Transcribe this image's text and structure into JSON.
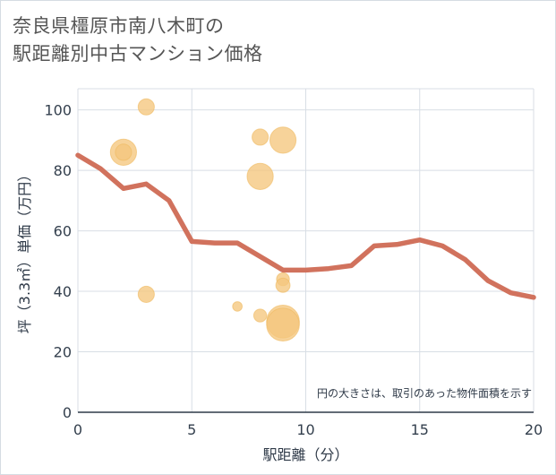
{
  "chart_data": {
    "type": "scatter",
    "title_lines": [
      "奈良県橿原市南八木町の",
      "駅距離別中古マンション価格"
    ],
    "xlabel": "駅距離（分）",
    "ylabel": "坪（3.3㎡）単価（万円）",
    "xlim": [
      0,
      20
    ],
    "ylim": [
      0,
      107
    ],
    "x_ticks": [
      0,
      5,
      10,
      15,
      20
    ],
    "y_ticks": [
      0,
      20,
      40,
      60,
      80,
      100
    ],
    "grid": true,
    "note": "円の大きさは、取引のあった物件面積を示す",
    "scatter_points": [
      {
        "x": 2,
        "y": 86,
        "size": 3
      },
      {
        "x": 2,
        "y": 86,
        "size": 1.5
      },
      {
        "x": 3,
        "y": 101,
        "size": 1.5
      },
      {
        "x": 3,
        "y": 39,
        "size": 1.5
      },
      {
        "x": 7,
        "y": 35,
        "size": 0.5
      },
      {
        "x": 8,
        "y": 91,
        "size": 1.5
      },
      {
        "x": 8,
        "y": 78,
        "size": 3
      },
      {
        "x": 8,
        "y": 32,
        "size": 1
      },
      {
        "x": 9,
        "y": 90,
        "size": 3
      },
      {
        "x": 9,
        "y": 44,
        "size": 1
      },
      {
        "x": 9,
        "y": 42,
        "size": 1.2
      },
      {
        "x": 9,
        "y": 30,
        "size": 4
      },
      {
        "x": 9,
        "y": 29,
        "size": 4
      }
    ],
    "trend_line": {
      "x": [
        0,
        1,
        2,
        3,
        4,
        5,
        6,
        7,
        8,
        9,
        10,
        11,
        12,
        13,
        14,
        15,
        16,
        17,
        18,
        19,
        20
      ],
      "y": [
        85,
        80.5,
        74,
        75.5,
        70,
        56.5,
        56,
        56,
        51.5,
        47,
        47,
        47.5,
        48.5,
        55,
        55.5,
        57,
        55,
        50.5,
        43.5,
        39.5,
        38
      ]
    },
    "colors": {
      "bubble": "#f5c77e",
      "bubble_stroke": "#efb95f",
      "line": "#d1725d",
      "grid": "#d8dee5",
      "axis": "#2f3a48"
    }
  }
}
